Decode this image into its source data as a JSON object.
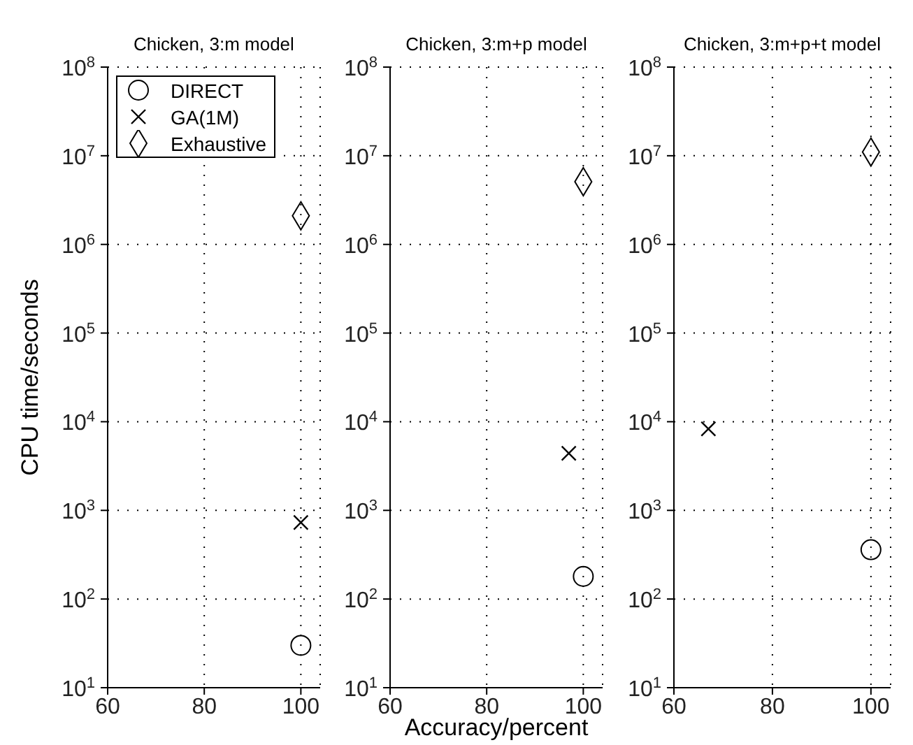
{
  "chart_data": [
    {
      "type": "scatter",
      "title": "Chicken, 3:m model",
      "ylabel": "CPU time/seconds",
      "xlim": [
        60,
        104
      ],
      "xticks": [
        60,
        80,
        100
      ],
      "ylim": [
        10,
        100000000
      ],
      "yticks": [
        {
          "value": 10,
          "label": "10$^{1}$"
        },
        {
          "value": 100,
          "label": "10$^{2}$"
        },
        {
          "value": 1000,
          "label": "10$^{3}$"
        },
        {
          "value": 10000,
          "label": "10$^{4}$"
        },
        {
          "value": 100000,
          "label": "10$^{5}$"
        },
        {
          "value": 1000000,
          "label": "10$^{6}$"
        },
        {
          "value": 10000000,
          "label": "10$^{7}$"
        },
        {
          "value": 100000000,
          "label": "10$^{8}$"
        }
      ],
      "log": "y",
      "grid": true,
      "legend": "top left",
      "series": [
        {
          "name": "DIRECT",
          "color": "#000000",
          "marker": "circle",
          "x": [
            100
          ],
          "values": [
            30
          ]
        },
        {
          "name": "GA(1M)",
          "color": "#000000",
          "marker": "cross",
          "x": [
            100
          ],
          "values": [
            730
          ]
        },
        {
          "name": "Exhaustive",
          "color": "#000000",
          "marker": "diamond",
          "x": [
            100
          ],
          "values": [
            2100000
          ]
        }
      ]
    },
    {
      "type": "scatter",
      "title": "Chicken, 3:m+p model",
      "xlabel": "Accuracy/percent",
      "xlim": [
        60,
        104
      ],
      "xticks": [
        60,
        80,
        100
      ],
      "ylim": [
        10,
        100000000
      ],
      "yticks": [
        {
          "value": 10,
          "label": "10$^{1}$"
        },
        {
          "value": 100,
          "label": "10$^{2}$"
        },
        {
          "value": 1000,
          "label": "10$^{3}$"
        },
        {
          "value": 10000,
          "label": "10$^{4}$"
        },
        {
          "value": 100000,
          "label": "10$^{5}$"
        },
        {
          "value": 1000000,
          "label": "10$^{6}$"
        },
        {
          "value": 10000000,
          "label": "10$^{7}$"
        },
        {
          "value": 100000000,
          "label": "10$^{8}$"
        }
      ],
      "log": "y",
      "grid": true,
      "series": [
        {
          "color": "#000000",
          "marker": "circle",
          "x": [
            100
          ],
          "values": [
            180
          ]
        },
        {
          "color": "#000000",
          "marker": "cross",
          "x": [
            97
          ],
          "values": [
            4400
          ]
        },
        {
          "color": "#000000",
          "marker": "diamond",
          "x": [
            100
          ],
          "values": [
            5100000
          ]
        }
      ]
    },
    {
      "type": "scatter",
      "title": "Chicken, 3:m+p+t model",
      "xlim": [
        60,
        104
      ],
      "xticks": [
        60,
        80,
        100
      ],
      "ylim": [
        10,
        100000000
      ],
      "yticks": [
        {
          "value": 10,
          "label": "10$^{1}$"
        },
        {
          "value": 100,
          "label": "10$^{2}$"
        },
        {
          "value": 1000,
          "label": "10$^{3}$"
        },
        {
          "value": 10000,
          "label": "10$^{4}$"
        },
        {
          "value": 100000,
          "label": "10$^{5}$"
        },
        {
          "value": 1000000,
          "label": "10$^{6}$"
        },
        {
          "value": 10000000,
          "label": "10$^{7}$"
        },
        {
          "value": 100000000,
          "label": "10$^{8}$"
        }
      ],
      "log": "y",
      "grid": true,
      "series": [
        {
          "color": "#000000",
          "marker": "circle",
          "x": [
            100
          ],
          "values": [
            360
          ]
        },
        {
          "color": "#000000",
          "marker": "cross",
          "x": [
            67
          ],
          "values": [
            8300
          ]
        },
        {
          "color": "#000000",
          "marker": "diamond",
          "x": [
            100
          ],
          "values": [
            11000000
          ]
        }
      ]
    }
  ]
}
